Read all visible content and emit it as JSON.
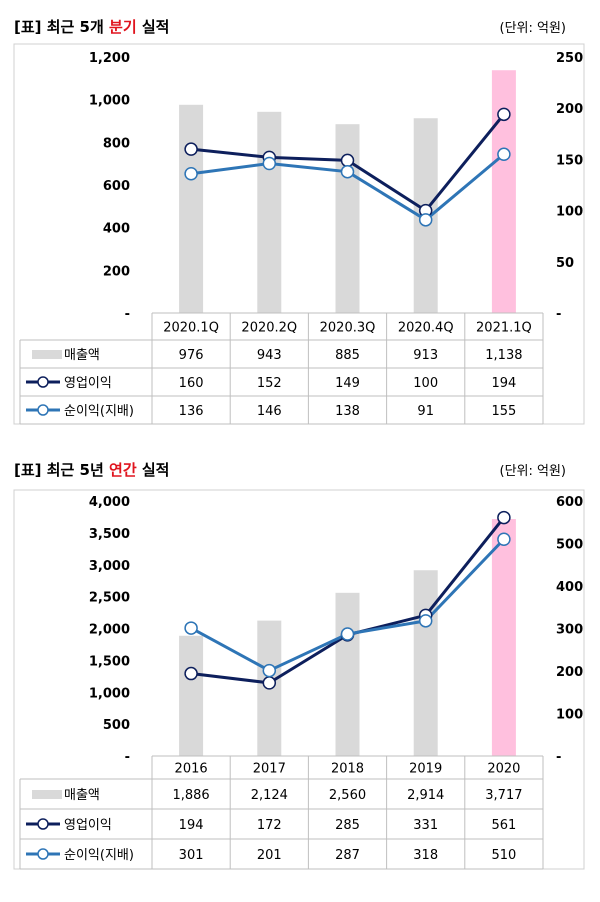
{
  "charts": [
    {
      "heading": {
        "prefix": "[표] 최근 5개 ",
        "highlight": "분기",
        "suffix": " 실적"
      },
      "unit": "(단위: 억원)"
    },
    {
      "heading": {
        "prefix": "[표] 최근 5년 ",
        "highlight": "연간",
        "suffix": " 실적"
      },
      "unit": "(단위: 억원)"
    }
  ],
  "colors": {
    "bar": "#d9d9d9",
    "bar_highlight": "#ffc0de",
    "operating_line": "#0d1f5c",
    "net_line": "#2e75b6"
  },
  "chart_data": [
    {
      "type": "bar",
      "categories": [
        "2020.1Q",
        "2020.2Q",
        "2020.3Q",
        "2020.4Q",
        "2021.1Q"
      ],
      "series": [
        {
          "name": "매출액",
          "type": "bar",
          "axis": "left",
          "values": [
            976,
            943,
            885,
            913,
            1138
          ],
          "labels": [
            "976",
            "943",
            "885",
            "913",
            "1,138"
          ]
        },
        {
          "name": "영업이익",
          "type": "line",
          "axis": "right",
          "values": [
            160,
            152,
            149,
            100,
            194
          ],
          "labels": [
            "160",
            "152",
            "149",
            "100",
            "194"
          ]
        },
        {
          "name": "순이익(지배)",
          "type": "line",
          "axis": "right",
          "values": [
            136,
            146,
            138,
            91,
            155
          ],
          "labels": [
            "136",
            "146",
            "138",
            "91",
            "155"
          ]
        }
      ],
      "ylim": [
        0,
        1200
      ],
      "y2lim": [
        0,
        250
      ],
      "yticks": [
        "-",
        "200",
        "400",
        "600",
        "800",
        "1,000",
        "1,200"
      ],
      "y2ticks": [
        "-",
        "50",
        "100",
        "150",
        "200",
        "250"
      ],
      "highlight_index": 4,
      "grid": false,
      "legend": "data-table"
    },
    {
      "type": "bar",
      "categories": [
        "2016",
        "2017",
        "2018",
        "2019",
        "2020"
      ],
      "series": [
        {
          "name": "매출액",
          "type": "bar",
          "axis": "left",
          "values": [
            1886,
            2124,
            2560,
            2914,
            3717
          ],
          "labels": [
            "1,886",
            "2,124",
            "2,560",
            "2,914",
            "3,717"
          ]
        },
        {
          "name": "영업이익",
          "type": "line",
          "axis": "right",
          "values": [
            194,
            172,
            285,
            331,
            561
          ],
          "labels": [
            "194",
            "172",
            "285",
            "331",
            "561"
          ]
        },
        {
          "name": "순이익(지배)",
          "type": "line",
          "axis": "right",
          "values": [
            301,
            201,
            287,
            318,
            510
          ],
          "labels": [
            "301",
            "201",
            "287",
            "318",
            "510"
          ]
        }
      ],
      "ylim": [
        0,
        4000
      ],
      "y2lim": [
        0,
        600
      ],
      "yticks": [
        "-",
        "500",
        "1,000",
        "1,500",
        "2,000",
        "2,500",
        "3,000",
        "3,500",
        "4,000"
      ],
      "y2ticks": [
        "-",
        "100",
        "200",
        "300",
        "400",
        "500",
        "600"
      ],
      "highlight_index": 4,
      "grid": false,
      "legend": "data-table"
    }
  ]
}
